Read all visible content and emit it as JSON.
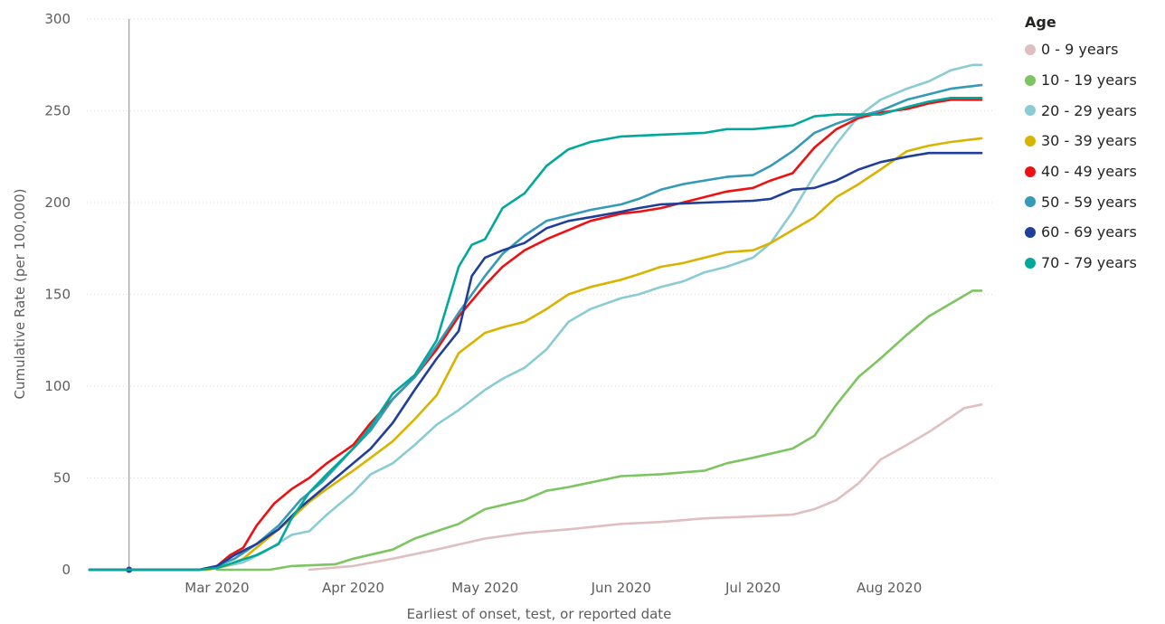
{
  "chart_data": {
    "type": "line",
    "xlabel": "Earliest of onset, test, or reported date",
    "ylabel": "Cumulative Rate (per 100,000)",
    "ylim": [
      0,
      300
    ],
    "y_ticks": [
      0,
      50,
      100,
      150,
      200,
      250,
      300
    ],
    "xlim": [
      "2020-02-01",
      "2020-08-23"
    ],
    "x_ticks": [
      {
        "date": "2020-03-01",
        "label": "Mar 2020"
      },
      {
        "date": "2020-04-01",
        "label": "Apr 2020"
      },
      {
        "date": "2020-05-01",
        "label": "May 2020"
      },
      {
        "date": "2020-06-01",
        "label": "Jun 2020"
      },
      {
        "date": "2020-07-01",
        "label": "Jul 2020"
      },
      {
        "date": "2020-08-01",
        "label": "Aug 2020"
      }
    ],
    "grid": "horizontal",
    "legend": {
      "title": "Age",
      "placement": "right"
    },
    "reference_line": {
      "date": "2020-02-10"
    },
    "series": [
      {
        "name": "0 - 9 years",
        "color": "#dfbfbf",
        "points": [
          [
            "2020-03-22",
            0
          ],
          [
            "2020-04-01",
            2
          ],
          [
            "2020-04-10",
            6
          ],
          [
            "2020-04-20",
            11
          ],
          [
            "2020-05-01",
            17
          ],
          [
            "2020-05-10",
            20
          ],
          [
            "2020-05-20",
            22
          ],
          [
            "2020-06-01",
            25
          ],
          [
            "2020-06-10",
            26
          ],
          [
            "2020-06-20",
            28
          ],
          [
            "2020-07-01",
            29
          ],
          [
            "2020-07-10",
            30
          ],
          [
            "2020-07-15",
            33
          ],
          [
            "2020-07-20",
            38
          ],
          [
            "2020-07-25",
            47
          ],
          [
            "2020-07-30",
            60
          ],
          [
            "2020-08-05",
            68
          ],
          [
            "2020-08-10",
            75
          ],
          [
            "2020-08-15",
            83
          ],
          [
            "2020-08-18",
            88
          ],
          [
            "2020-08-22",
            90
          ]
        ]
      },
      {
        "name": "10 - 19 years",
        "color": "#7dc462",
        "points": [
          [
            "2020-03-01",
            0
          ],
          [
            "2020-03-13",
            0
          ],
          [
            "2020-03-18",
            2
          ],
          [
            "2020-03-28",
            3
          ],
          [
            "2020-04-01",
            6
          ],
          [
            "2020-04-10",
            11
          ],
          [
            "2020-04-15",
            17
          ],
          [
            "2020-04-20",
            21
          ],
          [
            "2020-04-25",
            25
          ],
          [
            "2020-05-01",
            33
          ],
          [
            "2020-05-10",
            38
          ],
          [
            "2020-05-15",
            43
          ],
          [
            "2020-05-20",
            45
          ],
          [
            "2020-06-01",
            51
          ],
          [
            "2020-06-10",
            52
          ],
          [
            "2020-06-20",
            54
          ],
          [
            "2020-06-25",
            58
          ],
          [
            "2020-07-01",
            61
          ],
          [
            "2020-07-10",
            66
          ],
          [
            "2020-07-15",
            73
          ],
          [
            "2020-07-20",
            90
          ],
          [
            "2020-07-25",
            105
          ],
          [
            "2020-07-30",
            115
          ],
          [
            "2020-08-05",
            128
          ],
          [
            "2020-08-10",
            138
          ],
          [
            "2020-08-15",
            145
          ],
          [
            "2020-08-20",
            152
          ],
          [
            "2020-08-22",
            152
          ]
        ]
      },
      {
        "name": "20 - 29 years",
        "color": "#8acbd4",
        "points": [
          [
            "2020-02-01",
            0
          ],
          [
            "2020-02-26",
            0
          ],
          [
            "2020-03-01",
            1
          ],
          [
            "2020-03-07",
            4
          ],
          [
            "2020-03-12",
            10
          ],
          [
            "2020-03-18",
            19
          ],
          [
            "2020-03-22",
            21
          ],
          [
            "2020-03-26",
            30
          ],
          [
            "2020-04-01",
            42
          ],
          [
            "2020-04-05",
            52
          ],
          [
            "2020-04-10",
            58
          ],
          [
            "2020-04-15",
            68
          ],
          [
            "2020-04-20",
            79
          ],
          [
            "2020-04-25",
            87
          ],
          [
            "2020-05-01",
            98
          ],
          [
            "2020-05-05",
            104
          ],
          [
            "2020-05-10",
            110
          ],
          [
            "2020-05-15",
            120
          ],
          [
            "2020-05-20",
            135
          ],
          [
            "2020-05-25",
            142
          ],
          [
            "2020-06-01",
            148
          ],
          [
            "2020-06-05",
            150
          ],
          [
            "2020-06-10",
            154
          ],
          [
            "2020-06-15",
            157
          ],
          [
            "2020-06-20",
            162
          ],
          [
            "2020-06-25",
            165
          ],
          [
            "2020-07-01",
            170
          ],
          [
            "2020-07-05",
            178
          ],
          [
            "2020-07-10",
            195
          ],
          [
            "2020-07-15",
            215
          ],
          [
            "2020-07-20",
            232
          ],
          [
            "2020-07-25",
            247
          ],
          [
            "2020-07-30",
            256
          ],
          [
            "2020-08-05",
            262
          ],
          [
            "2020-08-10",
            266
          ],
          [
            "2020-08-15",
            272
          ],
          [
            "2020-08-20",
            275
          ],
          [
            "2020-08-22",
            275
          ]
        ]
      },
      {
        "name": "30 - 39 years",
        "color": "#d9b300",
        "points": [
          [
            "2020-02-01",
            0
          ],
          [
            "2020-02-28",
            0
          ],
          [
            "2020-03-03",
            2
          ],
          [
            "2020-03-07",
            6
          ],
          [
            "2020-03-12",
            16
          ],
          [
            "2020-03-18",
            28
          ],
          [
            "2020-03-22",
            37
          ],
          [
            "2020-03-26",
            44
          ],
          [
            "2020-04-01",
            54
          ],
          [
            "2020-04-05",
            61
          ],
          [
            "2020-04-10",
            70
          ],
          [
            "2020-04-15",
            82
          ],
          [
            "2020-04-20",
            95
          ],
          [
            "2020-04-25",
            118
          ],
          [
            "2020-05-01",
            129
          ],
          [
            "2020-05-05",
            132
          ],
          [
            "2020-05-10",
            135
          ],
          [
            "2020-05-15",
            142
          ],
          [
            "2020-05-20",
            150
          ],
          [
            "2020-05-25",
            154
          ],
          [
            "2020-06-01",
            158
          ],
          [
            "2020-06-05",
            161
          ],
          [
            "2020-06-10",
            165
          ],
          [
            "2020-06-15",
            167
          ],
          [
            "2020-06-20",
            170
          ],
          [
            "2020-06-25",
            173
          ],
          [
            "2020-07-01",
            174
          ],
          [
            "2020-07-05",
            178
          ],
          [
            "2020-07-10",
            185
          ],
          [
            "2020-07-15",
            192
          ],
          [
            "2020-07-20",
            203
          ],
          [
            "2020-07-25",
            210
          ],
          [
            "2020-07-30",
            218
          ],
          [
            "2020-08-05",
            228
          ],
          [
            "2020-08-10",
            231
          ],
          [
            "2020-08-15",
            233
          ],
          [
            "2020-08-22",
            235
          ]
        ]
      },
      {
        "name": "40 - 49 years",
        "color": "#ee1111",
        "points": [
          [
            "2020-02-01",
            0
          ],
          [
            "2020-02-26",
            0
          ],
          [
            "2020-03-01",
            2
          ],
          [
            "2020-03-04",
            8
          ],
          [
            "2020-03-07",
            12
          ],
          [
            "2020-03-10",
            24
          ],
          [
            "2020-03-14",
            36
          ],
          [
            "2020-03-18",
            44
          ],
          [
            "2020-03-22",
            50
          ],
          [
            "2020-03-26",
            58
          ],
          [
            "2020-04-01",
            68
          ],
          [
            "2020-04-05",
            80
          ],
          [
            "2020-04-10",
            93
          ],
          [
            "2020-04-15",
            105
          ],
          [
            "2020-04-20",
            120
          ],
          [
            "2020-04-25",
            138
          ],
          [
            "2020-05-01",
            155
          ],
          [
            "2020-05-05",
            165
          ],
          [
            "2020-05-10",
            174
          ],
          [
            "2020-05-15",
            180
          ],
          [
            "2020-05-20",
            185
          ],
          [
            "2020-05-25",
            190
          ],
          [
            "2020-06-01",
            194
          ],
          [
            "2020-06-05",
            195
          ],
          [
            "2020-06-10",
            197
          ],
          [
            "2020-06-15",
            200
          ],
          [
            "2020-06-20",
            203
          ],
          [
            "2020-06-25",
            206
          ],
          [
            "2020-07-01",
            208
          ],
          [
            "2020-07-05",
            212
          ],
          [
            "2020-07-10",
            216
          ],
          [
            "2020-07-15",
            230
          ],
          [
            "2020-07-20",
            240
          ],
          [
            "2020-07-25",
            246
          ],
          [
            "2020-07-30",
            249
          ],
          [
            "2020-08-05",
            251
          ],
          [
            "2020-08-10",
            254
          ],
          [
            "2020-08-15",
            256
          ],
          [
            "2020-08-22",
            256
          ]
        ]
      },
      {
        "name": "50 - 59 years",
        "color": "#3599b8",
        "points": [
          [
            "2020-02-01",
            0
          ],
          [
            "2020-02-26",
            0
          ],
          [
            "2020-03-01",
            2
          ],
          [
            "2020-03-05",
            6
          ],
          [
            "2020-03-10",
            14
          ],
          [
            "2020-03-15",
            24
          ],
          [
            "2020-03-20",
            38
          ],
          [
            "2020-03-25",
            48
          ],
          [
            "2020-04-01",
            66
          ],
          [
            "2020-04-05",
            76
          ],
          [
            "2020-04-10",
            93
          ],
          [
            "2020-04-15",
            105
          ],
          [
            "2020-04-20",
            122
          ],
          [
            "2020-04-25",
            140
          ],
          [
            "2020-05-01",
            160
          ],
          [
            "2020-05-05",
            172
          ],
          [
            "2020-05-10",
            182
          ],
          [
            "2020-05-15",
            190
          ],
          [
            "2020-05-20",
            193
          ],
          [
            "2020-05-25",
            196
          ],
          [
            "2020-06-01",
            199
          ],
          [
            "2020-06-05",
            202
          ],
          [
            "2020-06-10",
            207
          ],
          [
            "2020-06-15",
            210
          ],
          [
            "2020-06-20",
            212
          ],
          [
            "2020-06-25",
            214
          ],
          [
            "2020-07-01",
            215
          ],
          [
            "2020-07-05",
            220
          ],
          [
            "2020-07-10",
            228
          ],
          [
            "2020-07-15",
            238
          ],
          [
            "2020-07-20",
            243
          ],
          [
            "2020-07-25",
            247
          ],
          [
            "2020-07-30",
            250
          ],
          [
            "2020-08-05",
            256
          ],
          [
            "2020-08-10",
            259
          ],
          [
            "2020-08-15",
            262
          ],
          [
            "2020-08-22",
            264
          ]
        ]
      },
      {
        "name": "60 - 69 years",
        "color": "#1f3f99",
        "points": [
          [
            "2020-02-01",
            0
          ],
          [
            "2020-02-26",
            0
          ],
          [
            "2020-03-01",
            2
          ],
          [
            "2020-03-05",
            8
          ],
          [
            "2020-03-10",
            14
          ],
          [
            "2020-03-15",
            22
          ],
          [
            "2020-03-20",
            34
          ],
          [
            "2020-03-25",
            44
          ],
          [
            "2020-04-01",
            58
          ],
          [
            "2020-04-05",
            66
          ],
          [
            "2020-04-10",
            80
          ],
          [
            "2020-04-15",
            98
          ],
          [
            "2020-04-20",
            115
          ],
          [
            "2020-04-25",
            130
          ],
          [
            "2020-04-28",
            160
          ],
          [
            "2020-05-01",
            170
          ],
          [
            "2020-05-05",
            174
          ],
          [
            "2020-05-10",
            178
          ],
          [
            "2020-05-15",
            186
          ],
          [
            "2020-05-20",
            190
          ],
          [
            "2020-05-25",
            192
          ],
          [
            "2020-06-01",
            195
          ],
          [
            "2020-06-05",
            197
          ],
          [
            "2020-06-10",
            199
          ],
          [
            "2020-06-20",
            200
          ],
          [
            "2020-07-01",
            201
          ],
          [
            "2020-07-05",
            202
          ],
          [
            "2020-07-10",
            207
          ],
          [
            "2020-07-15",
            208
          ],
          [
            "2020-07-20",
            212
          ],
          [
            "2020-07-25",
            218
          ],
          [
            "2020-07-30",
            222
          ],
          [
            "2020-08-05",
            225
          ],
          [
            "2020-08-10",
            227
          ],
          [
            "2020-08-22",
            227
          ]
        ]
      },
      {
        "name": "70 - 79 years",
        "color": "#01a89b",
        "points": [
          [
            "2020-02-01",
            0
          ],
          [
            "2020-02-26",
            0
          ],
          [
            "2020-03-01",
            1
          ],
          [
            "2020-03-05",
            4
          ],
          [
            "2020-03-10",
            8
          ],
          [
            "2020-03-15",
            14
          ],
          [
            "2020-03-18",
            28
          ],
          [
            "2020-03-22",
            42
          ],
          [
            "2020-03-26",
            52
          ],
          [
            "2020-04-01",
            66
          ],
          [
            "2020-04-05",
            78
          ],
          [
            "2020-04-10",
            96
          ],
          [
            "2020-04-15",
            106
          ],
          [
            "2020-04-20",
            125
          ],
          [
            "2020-04-25",
            165
          ],
          [
            "2020-04-28",
            177
          ],
          [
            "2020-05-01",
            180
          ],
          [
            "2020-05-05",
            197
          ],
          [
            "2020-05-10",
            205
          ],
          [
            "2020-05-15",
            220
          ],
          [
            "2020-05-20",
            229
          ],
          [
            "2020-05-25",
            233
          ],
          [
            "2020-06-01",
            236
          ],
          [
            "2020-06-10",
            237
          ],
          [
            "2020-06-20",
            238
          ],
          [
            "2020-06-25",
            240
          ],
          [
            "2020-07-01",
            240
          ],
          [
            "2020-07-10",
            242
          ],
          [
            "2020-07-15",
            247
          ],
          [
            "2020-07-20",
            248
          ],
          [
            "2020-07-30",
            248
          ],
          [
            "2020-08-05",
            252
          ],
          [
            "2020-08-10",
            255
          ],
          [
            "2020-08-15",
            257
          ],
          [
            "2020-08-22",
            257
          ]
        ]
      }
    ]
  }
}
